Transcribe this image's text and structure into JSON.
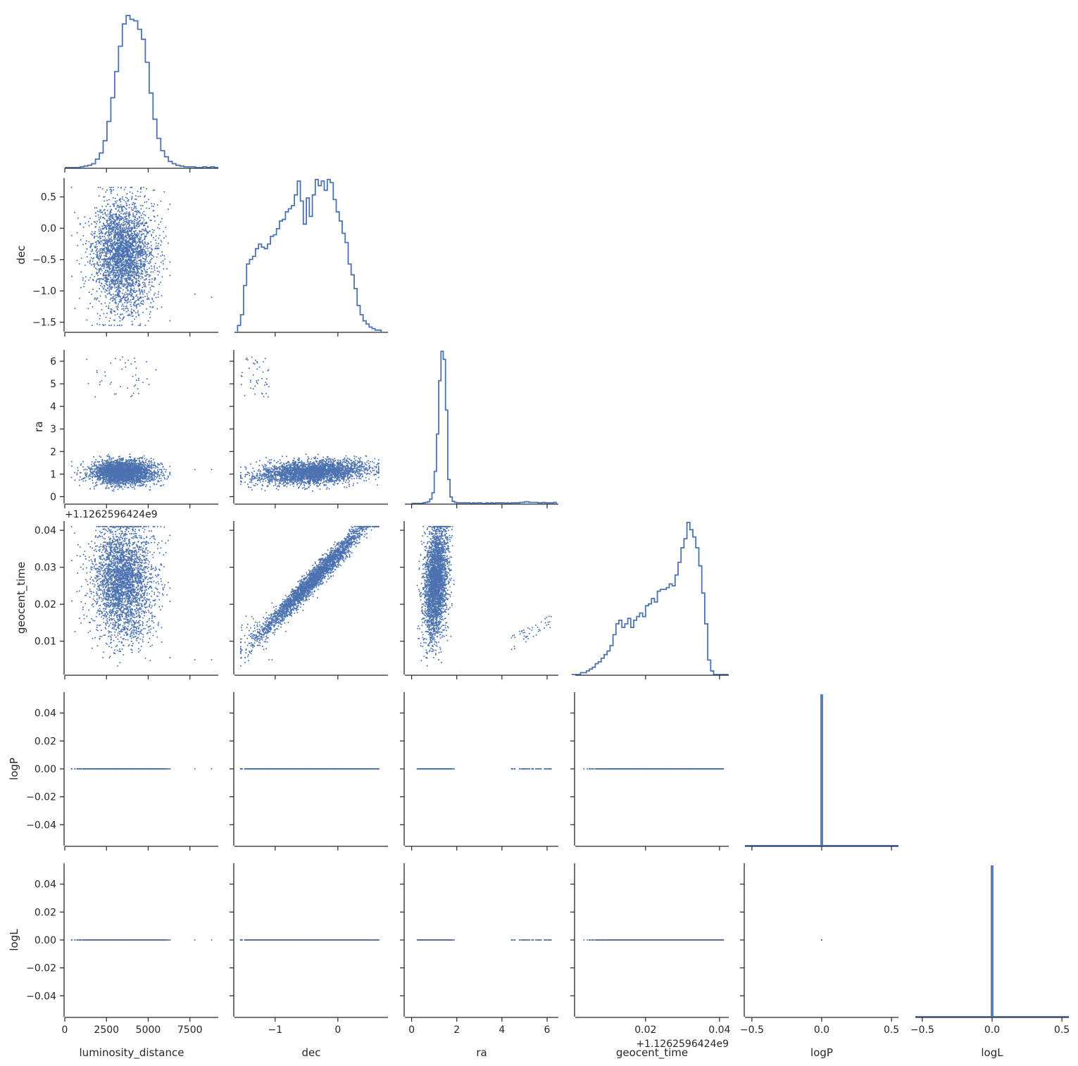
{
  "chart_data": {
    "type": "scatter",
    "title": "",
    "layout": "corner pair plot (lower triangle scatter, diagonal step histograms)",
    "colors": {
      "series": "#4c72b0",
      "axis": "#262626",
      "background": "#ffffff"
    },
    "grid": false,
    "legend": "none",
    "variables": [
      {
        "name": "luminosity_distance",
        "range": [
          0,
          9200
        ],
        "ticks": [
          0,
          2500,
          5000,
          7500
        ],
        "tick_labels": [
          "0",
          "2500",
          "5000",
          "7500"
        ],
        "show_x_tick_labels": true
      },
      {
        "name": "dec",
        "range": [
          -1.65,
          0.8
        ],
        "ticks": [
          -1.5,
          -1.0,
          -0.5,
          0.0,
          0.5
        ],
        "tick_labels": [
          "−1.5",
          "−1.0",
          "−0.5",
          "0.0",
          "0.5"
        ],
        "x_tick_labels": [
          "−1",
          "0"
        ],
        "x_ticks": [
          -1,
          0
        ]
      },
      {
        "name": "ra",
        "range": [
          -0.3,
          6.5
        ],
        "ticks": [
          0,
          1,
          2,
          3,
          4,
          5,
          6
        ],
        "tick_labels": [
          "0",
          "1",
          "2",
          "3",
          "4",
          "5",
          "6"
        ],
        "x_ticks": [
          0,
          2,
          4,
          6
        ],
        "x_tick_labels": [
          "0",
          "2",
          "4",
          "6"
        ]
      },
      {
        "name": "geocent_time",
        "range": [
          0.001,
          0.0425
        ],
        "ticks": [
          0.01,
          0.02,
          0.03,
          0.04
        ],
        "tick_labels": [
          "0.01",
          "0.02",
          "0.03",
          "0.04"
        ],
        "x_ticks": [
          0.02,
          0.04
        ],
        "x_tick_labels": [
          "0.02",
          "0.04"
        ],
        "offset_label": "+1.1262596424e9"
      },
      {
        "name": "logP",
        "range": [
          -0.055,
          0.055
        ],
        "ticks": [
          -0.04,
          -0.02,
          0.0,
          0.02,
          0.04
        ],
        "tick_labels": [
          "−0.04",
          "−0.02",
          "0.00",
          "0.02",
          "0.04"
        ],
        "x_range": [
          -0.55,
          0.55
        ],
        "x_ticks": [
          -0.5,
          0.0,
          0.5
        ],
        "x_tick_labels": [
          "−0.5",
          "0.0",
          "0.5"
        ]
      },
      {
        "name": "logL",
        "range": [
          -0.055,
          0.055
        ],
        "ticks": [
          -0.04,
          -0.02,
          0.0,
          0.02,
          0.04
        ],
        "tick_labels": [
          "−0.04",
          "−0.02",
          "0.00",
          "0.02",
          "0.04"
        ],
        "x_range": [
          -0.55,
          0.55
        ],
        "x_ticks": [
          -0.5,
          0.0,
          0.5
        ],
        "x_tick_labels": [
          "−0.5",
          "0.0",
          "0.5"
        ]
      }
    ],
    "x_axis_labels": [
      "luminosity_distance",
      "dec",
      "ra",
      "geocent_time",
      "logP",
      "logL"
    ],
    "y_axis_labels": [
      "dec",
      "ra",
      "geocent_time",
      "logP",
      "logL"
    ],
    "histograms": {
      "luminosity_distance": {
        "bin_edges_start": 0,
        "bin_width": 230,
        "counts": [
          0,
          0,
          0,
          0,
          1,
          2,
          3,
          5,
          11,
          19,
          35,
          60,
          91,
          125,
          158,
          187,
          198,
          193,
          191,
          180,
          167,
          137,
          97,
          63,
          38,
          22,
          14,
          8,
          5,
          3,
          2,
          1,
          1,
          1,
          0,
          0,
          1,
          0,
          1,
          0
        ]
      },
      "dec": {
        "bin_edges_start": -1.6,
        "bin_width": 0.0477,
        "counts": [
          4,
          11,
          30,
          44,
          47,
          49,
          54,
          57,
          55,
          54,
          57,
          62,
          63,
          67,
          72,
          73,
          78,
          80,
          82,
          89,
          98,
          85,
          70,
          87,
          75,
          89,
          99,
          95,
          98,
          92,
          99,
          97,
          86,
          78,
          72,
          64,
          58,
          44,
          37,
          28,
          17,
          11,
          7,
          5,
          3,
          2,
          1,
          1
        ]
      },
      "ra": {
        "bin_edges_start": 0.0,
        "bin_width": 0.1,
        "counts": [
          0,
          0,
          0,
          0,
          0,
          1,
          2,
          3,
          8,
          20,
          60,
          130,
          230,
          285,
          270,
          175,
          45,
          12,
          4,
          2,
          1,
          1,
          1,
          1,
          1,
          1,
          0,
          1,
          0,
          1,
          1,
          0,
          0,
          1,
          0,
          1,
          0,
          1,
          1,
          1,
          1,
          0,
          1,
          0,
          1,
          1,
          1,
          1,
          2,
          2,
          3,
          3,
          2,
          2,
          2,
          2,
          1,
          1,
          2,
          1,
          1,
          1,
          1,
          2
        ]
      },
      "geocent_time": {
        "bin_edges_start": 0.0,
        "bin_width": 0.0008,
        "counts": [
          0,
          0,
          0,
          1,
          1,
          2,
          3,
          4,
          6,
          7,
          9,
          11,
          13,
          16,
          22,
          28,
          30,
          26,
          28,
          31,
          26,
          30,
          32,
          34,
          32,
          38,
          39,
          42,
          40,
          46,
          47,
          47,
          48,
          50,
          49,
          55,
          62,
          70,
          75,
          84,
          80,
          76,
          70,
          60,
          45,
          28,
          8,
          2,
          0,
          0,
          0,
          0,
          0
        ]
      },
      "logP": {
        "bin_edges_start": -0.55,
        "bin_width": 0.011,
        "spike_at": 0.0,
        "spike_value": 0.05
      },
      "logL": {
        "bin_edges_start": -0.55,
        "bin_width": 0.011,
        "spike_at": 0.0,
        "spike_value": 0.05
      }
    },
    "scatter_description": {
      "luminosity_distance": {
        "center": 3500,
        "sd": 900,
        "outliers": [
          [
            7800,
            -1.05
          ],
          [
            8800,
            -1.1
          ]
        ]
      },
      "dec": {
        "center": -0.4,
        "sd": 0.45,
        "min": -1.55,
        "max": 0.65
      },
      "ra": {
        "main_center": 1.1,
        "main_sd": 0.25,
        "secondary_cluster": [
          4.3,
          6.2
        ],
        "secondary_fraction": 0.015
      },
      "geocent_time": {
        "relation": "≈ 0.0335 + 0.0175*dec",
        "min": 0.002,
        "max": 0.041
      },
      "logP": {
        "value": 0.0
      },
      "logL": {
        "value": 0.0
      }
    },
    "n_samples": 3000
  }
}
